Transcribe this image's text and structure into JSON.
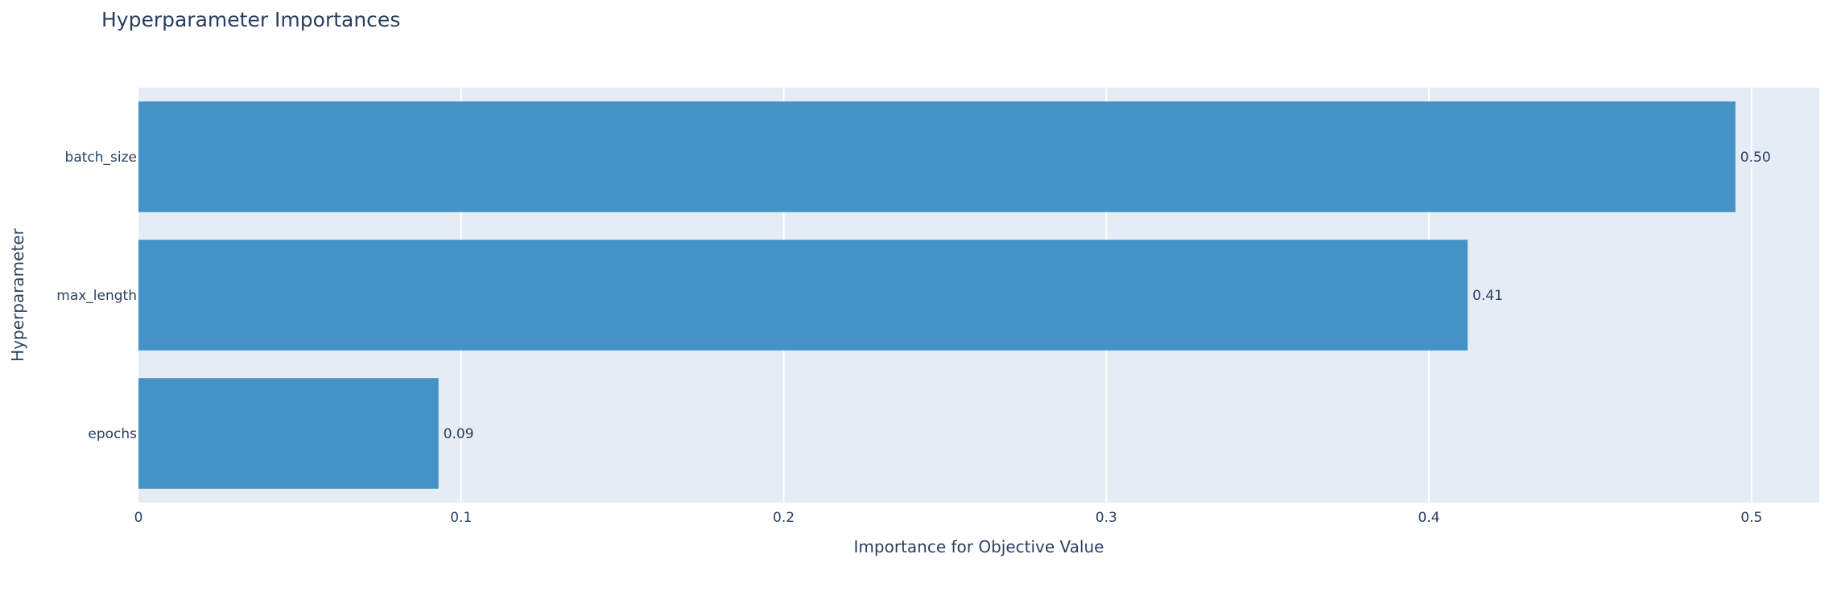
{
  "chart_data": {
    "type": "bar",
    "orientation": "horizontal",
    "title": "Hyperparameter Importances",
    "xlabel": "Importance for Objective Value",
    "ylabel": "Hyperparameter",
    "categories": [
      "batch_size",
      "max_length",
      "epochs"
    ],
    "values": [
      0.495,
      0.412,
      0.093
    ],
    "data_labels": [
      "0.50",
      "0.41",
      "0.09"
    ],
    "xlim": [
      0,
      0.521
    ],
    "x_ticks": [
      0,
      0.1,
      0.2,
      0.3,
      0.4,
      0.5
    ],
    "x_tick_labels": [
      "0",
      "0.1",
      "0.2",
      "0.3",
      "0.4",
      "0.5"
    ],
    "grid": true,
    "legend": "none",
    "colors": {
      "bar": "#4393c6",
      "plot_background": "#e5ecf6",
      "gridline": "#ffffff",
      "text": "#2a3f5f"
    }
  }
}
